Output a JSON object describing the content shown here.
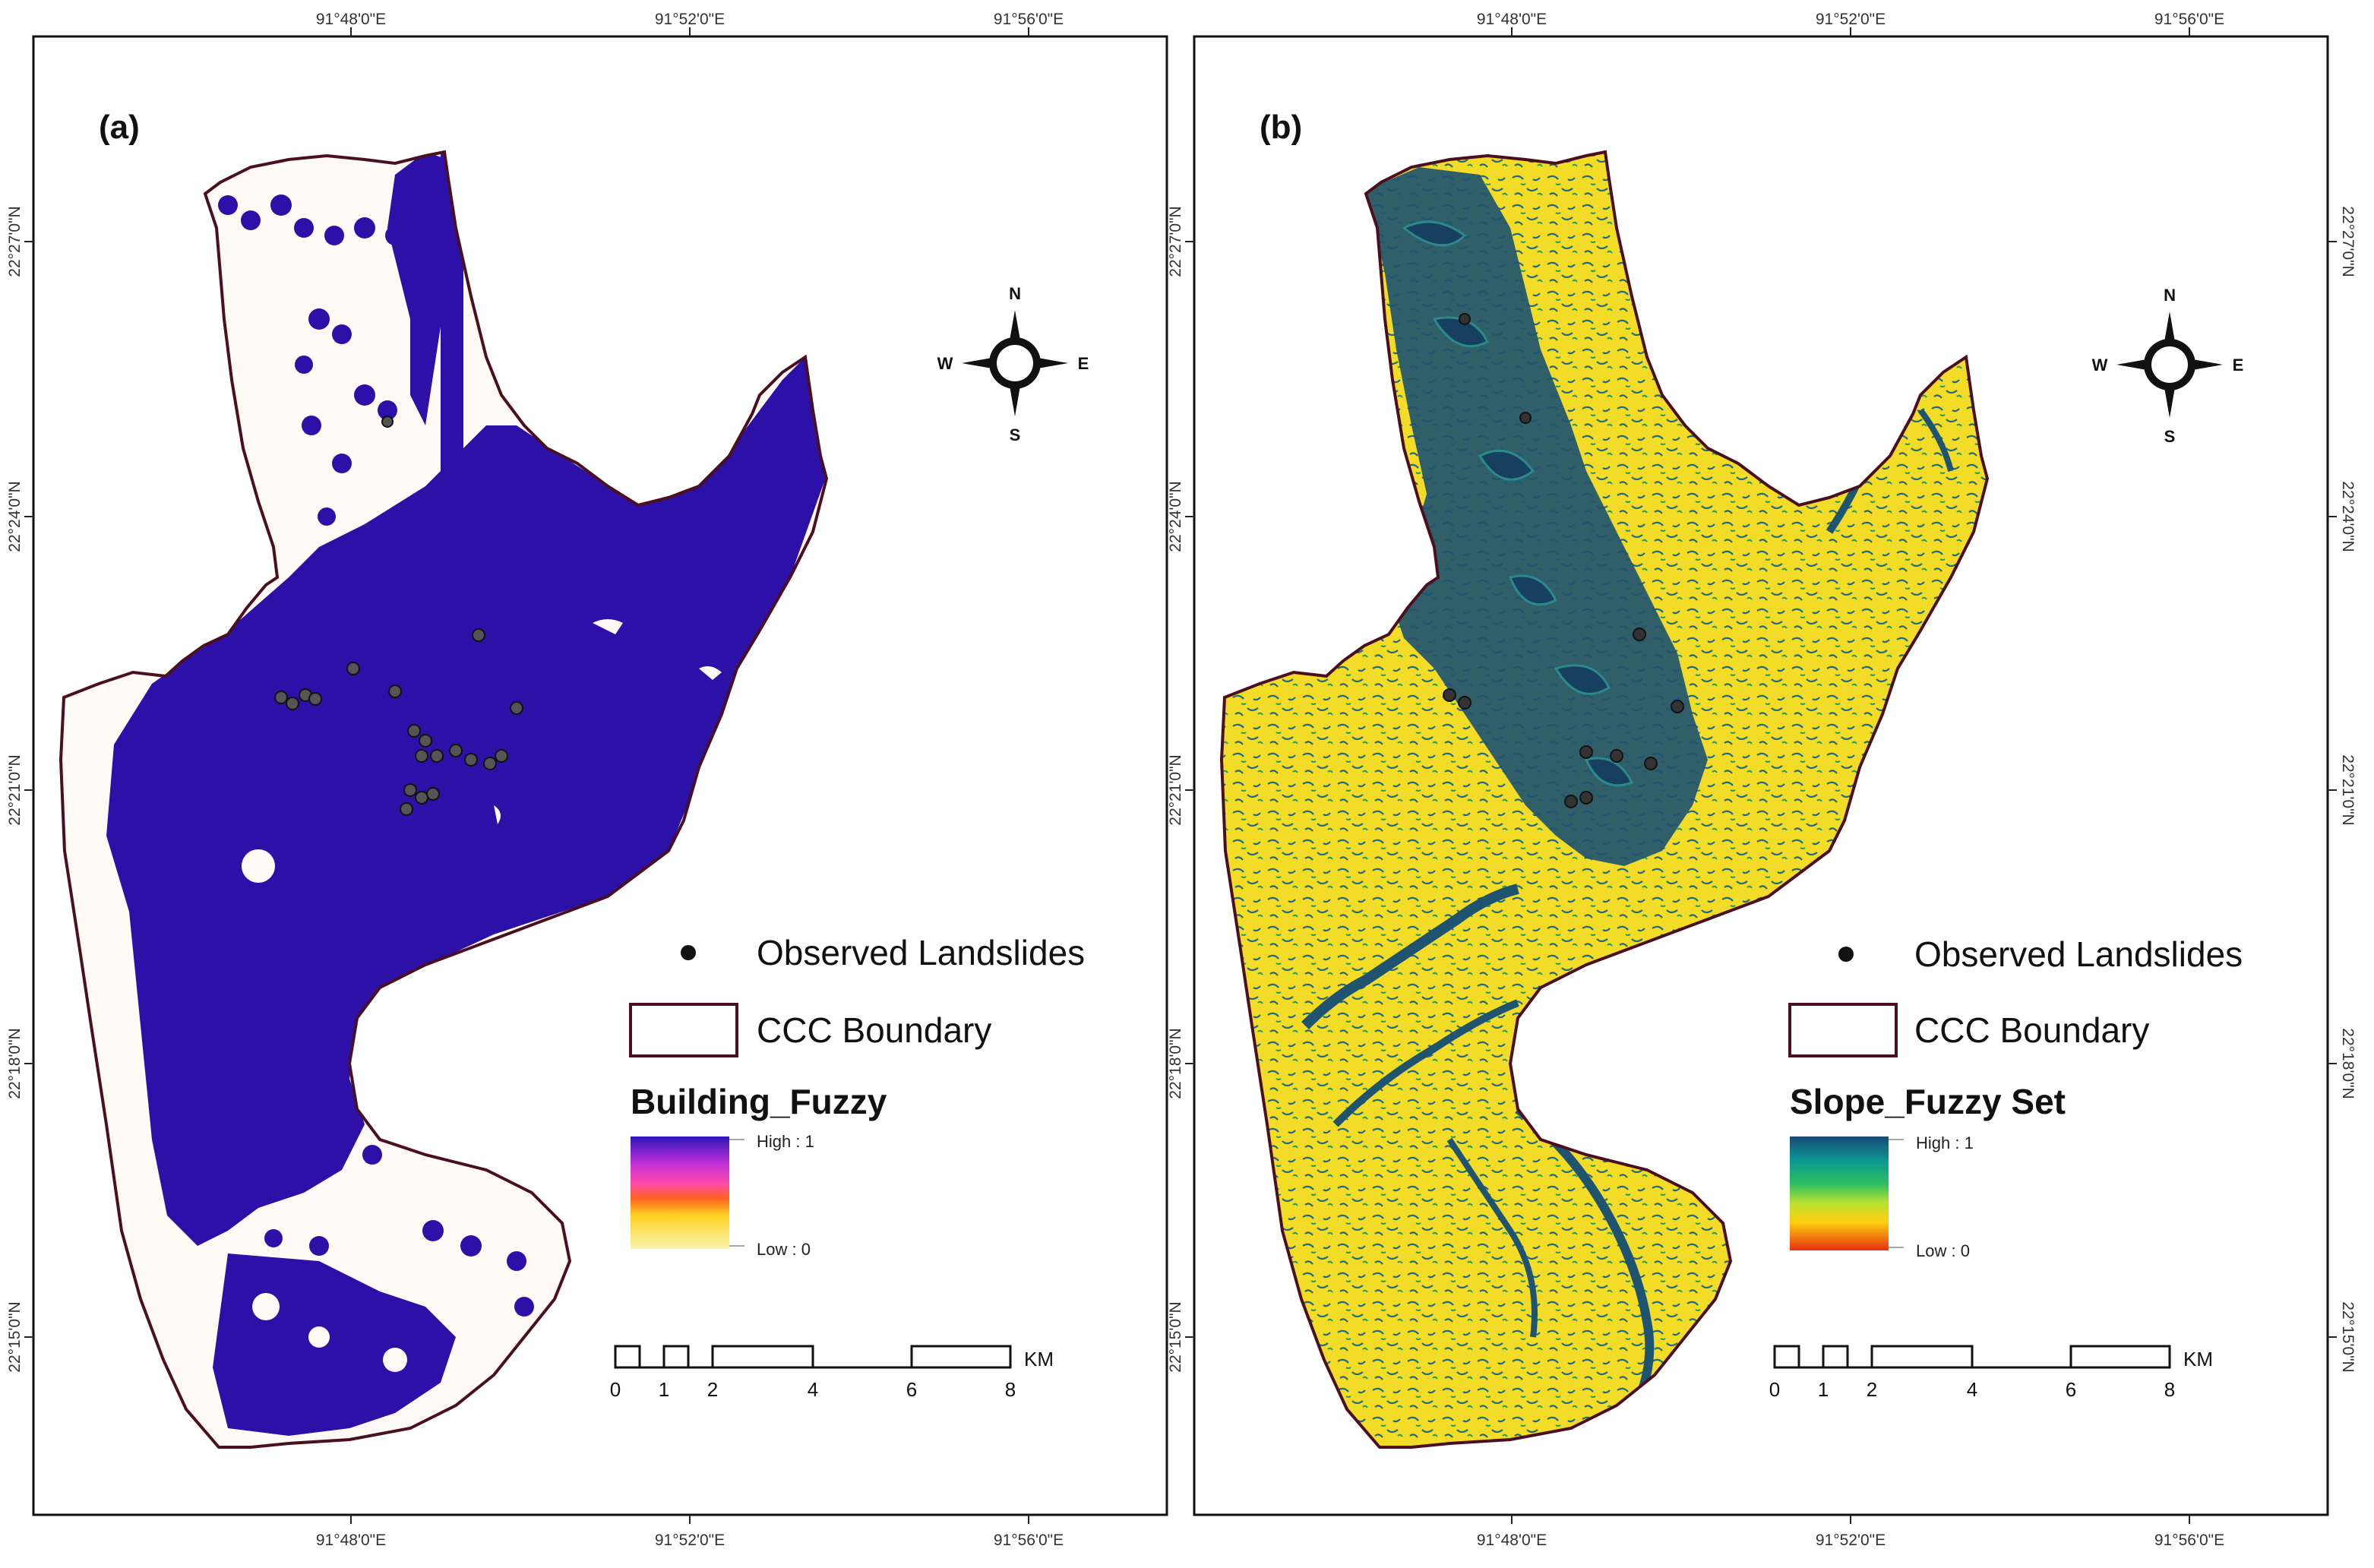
{
  "panels": [
    {
      "label": "(a)",
      "lon_ticks": [
        "91°48'0\"E",
        "91°52'0\"E",
        "91°56'0\"E"
      ],
      "lat_ticks": [
        "22°27'0\"N",
        "22°24'0\"N",
        "22°21'0\"N",
        "22°18'0\"N",
        "22°15'0\"N"
      ],
      "north_arrow": {
        "n": "N",
        "s": "S",
        "e": "E",
        "w": "W"
      },
      "legend": {
        "observed": "Observed Landslides",
        "boundary": "CCC Boundary",
        "title": "Building_Fuzzy",
        "high": "High : 1",
        "low": "Low : 0",
        "ramp_colors": [
          "#2a14b8",
          "#c832d8",
          "#ff4aa8",
          "#ff6020",
          "#ffd020",
          "#f8f4b0"
        ],
        "fill_color": "#2c10a8"
      },
      "scale": {
        "labels": [
          "0",
          "1",
          "2",
          "4",
          "6",
          "8"
        ],
        "unit": "KM"
      }
    },
    {
      "label": "(b)",
      "lon_ticks": [
        "91°48'0\"E",
        "91°52'0\"E",
        "91°56'0\"E"
      ],
      "lat_ticks": [
        "22°27'0\"N",
        "22°24'0\"N",
        "22°21'0\"N",
        "22°18'0\"N",
        "22°15'0\"N"
      ],
      "north_arrow": {
        "n": "N",
        "s": "S",
        "e": "E",
        "w": "W"
      },
      "legend": {
        "observed": "Observed Landslides",
        "boundary": "CCC Boundary",
        "title": "Slope_Fuzzy Set",
        "high": "High : 1",
        "low": "Low : 0",
        "ramp_colors": [
          "#1a4a78",
          "#0a9a90",
          "#30c060",
          "#b8e030",
          "#ffd010",
          "#e83010"
        ],
        "fill_color": "#f2dc28"
      },
      "scale": {
        "labels": [
          "0",
          "1",
          "2",
          "4",
          "6",
          "8"
        ],
        "unit": "KM"
      }
    }
  ]
}
